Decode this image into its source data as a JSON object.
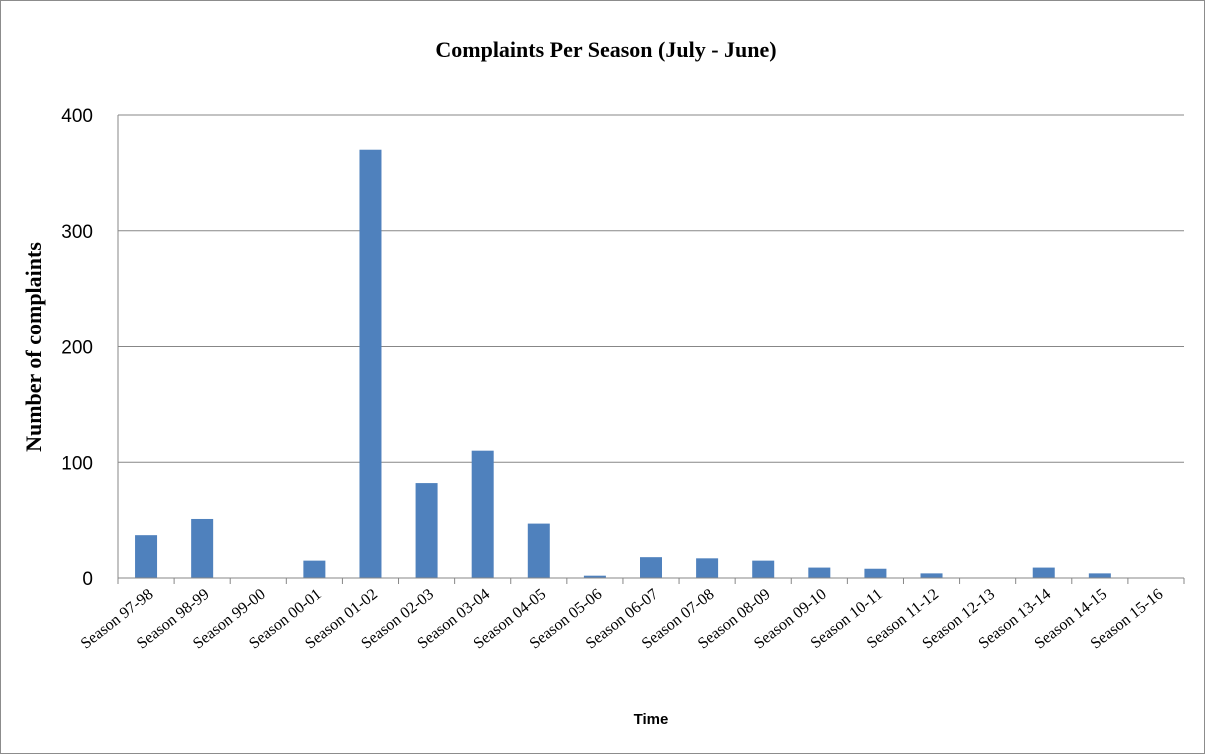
{
  "chart_data": {
    "type": "bar",
    "title": "Complaints Per Season (July - June)",
    "xlabel": "Time",
    "ylabel": "Number of complaints",
    "categories": [
      "Season 97-98",
      "Season 98-99",
      "Season 99-00",
      "Season 00-01",
      "Season 01-02",
      "Season 02-03",
      "Season 03-04",
      "Season 04-05",
      "Season 05-06",
      "Season 06-07",
      "Season 07-08",
      "Season 08-09",
      "Season 09-10",
      "Season 10-11",
      "Season 11-12",
      "Season 12-13",
      "Season 13-14",
      "Season 14-15",
      "Season 15-16"
    ],
    "values": [
      37,
      51,
      0,
      15,
      370,
      82,
      110,
      47,
      2,
      18,
      17,
      15,
      9,
      8,
      4,
      0,
      9,
      4,
      0
    ],
    "ylim": [
      0,
      400
    ],
    "yticks": [
      0,
      100,
      200,
      300,
      400
    ],
    "grid": true,
    "bar_color": "#4f81bd",
    "legend": "none"
  }
}
